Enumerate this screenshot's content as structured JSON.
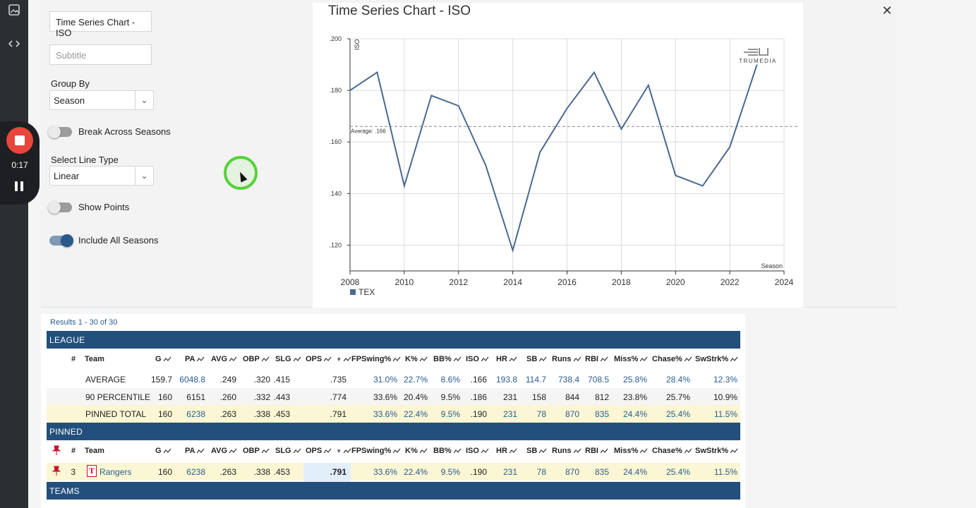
{
  "sidebar": {
    "icons": [
      "image-icon",
      "code-icon"
    ]
  },
  "recorder": {
    "time": "0:17"
  },
  "settings": {
    "title_value": "Time Series Chart - ISO",
    "subtitle_placeholder": "Subtitle",
    "group_by_label": "Group By",
    "group_by_value": "Season",
    "break_label": "Break Across Seasons",
    "line_type_label": "Select Line Type",
    "line_type_value": "Linear",
    "show_points_label": "Show Points",
    "include_all_label": "Include All Seasons",
    "break_on": false,
    "show_points_on": false,
    "include_all_on": true
  },
  "chart_title": "Time Series Chart - ISO",
  "chart_data": {
    "type": "line",
    "ylabel": "ISO",
    "xlabel": "Season",
    "x_ticks": [
      "2008",
      "2010",
      "2012",
      "2014",
      "2016",
      "2018",
      "2020",
      "2022",
      "2024"
    ],
    "y_ticks": [
      ".120",
      ".140",
      ".160",
      ".180",
      ".200"
    ],
    "xlim": [
      2008,
      2024
    ],
    "ylim": [
      0.11,
      0.2
    ],
    "grid": true,
    "watermark": "TRUMEDIA",
    "average_label": "Average: .166",
    "average": 0.166,
    "legend": "bottom-left",
    "series": [
      {
        "name": "TEX",
        "color": "#4a6990",
        "x": [
          2008,
          2009,
          2010,
          2011,
          2012,
          2013,
          2014,
          2015,
          2016,
          2017,
          2018,
          2019,
          2020,
          2021,
          2022,
          2023
        ],
        "y": [
          0.18,
          0.187,
          0.143,
          0.178,
          0.174,
          0.151,
          0.118,
          0.156,
          0.173,
          0.187,
          0.165,
          0.182,
          0.147,
          0.143,
          0.158,
          0.19
        ]
      }
    ]
  },
  "table": {
    "results_text": "Results 1 - 30 of 30",
    "league_title": "LEAGUE",
    "pinned_title": "PINNED",
    "teams_title": "TEAMS",
    "columns": [
      "#",
      "Team",
      "G",
      "PA",
      "AVG",
      "OBP",
      "SLG",
      "OPS",
      "FPSwing%",
      "K%",
      "BB%",
      "ISO",
      "HR",
      "SB",
      "Runs",
      "RBI",
      "Miss%",
      "Chase%",
      "SwStrk%"
    ],
    "league_rows": [
      {
        "team": "AVERAGE",
        "G": "159.7",
        "PA": "6048.8",
        "AVG": ".249",
        "OBP": ".320",
        "SLG": ".415",
        "OPS": ".735",
        "FPSwing": "31.0%",
        "K": "22.7%",
        "BB": "8.6%",
        "ISO": ".166",
        "HR": "193.8",
        "SB": "114.7",
        "Runs": "738.4",
        "RBI": "708.5",
        "Miss": "25.8%",
        "Chase": "28.4%",
        "SwStrk": "12.3%"
      },
      {
        "team": "90 PERCENTILE",
        "G": "160",
        "PA": "6151",
        "AVG": ".260",
        "OBP": ".332",
        "SLG": ".443",
        "OPS": ".774",
        "FPSwing": "33.6%",
        "K": "20.4%",
        "BB": "9.5%",
        "ISO": ".186",
        "HR": "231",
        "SB": "158",
        "Runs": "844",
        "RBI": "812",
        "Miss": "23.8%",
        "Chase": "25.7%",
        "SwStrk": "10.9%"
      },
      {
        "team": "PINNED TOTAL",
        "G": "160",
        "PA": "6238",
        "AVG": ".263",
        "OBP": ".338",
        "SLG": ".453",
        "OPS": ".791",
        "FPSwing": "33.6%",
        "K": "22.4%",
        "BB": "9.5%",
        "ISO": ".190",
        "HR": "231",
        "SB": "78",
        "Runs": "870",
        "RBI": "835",
        "Miss": "24.4%",
        "Chase": "25.4%",
        "SwStrk": "11.5%"
      }
    ],
    "pinned_row": {
      "rank": "3",
      "team": "Rangers",
      "G": "160",
      "PA": "6238",
      "AVG": ".263",
      "OBP": ".338",
      "SLG": ".453",
      "OPS": ".791",
      "FPSwing": "33.6%",
      "K": "22.4%",
      "BB": "9.5%",
      "ISO": ".190",
      "HR": "231",
      "SB": "78",
      "Runs": "870",
      "RBI": "835",
      "Miss": "24.4%",
      "Chase": "25.4%",
      "SwStrk": "11.5%"
    }
  },
  "colors": {
    "band": "#234f7c",
    "link": "#2b5c8e",
    "pinned_bg": "#fbf6d3",
    "line": "#4a6990"
  }
}
